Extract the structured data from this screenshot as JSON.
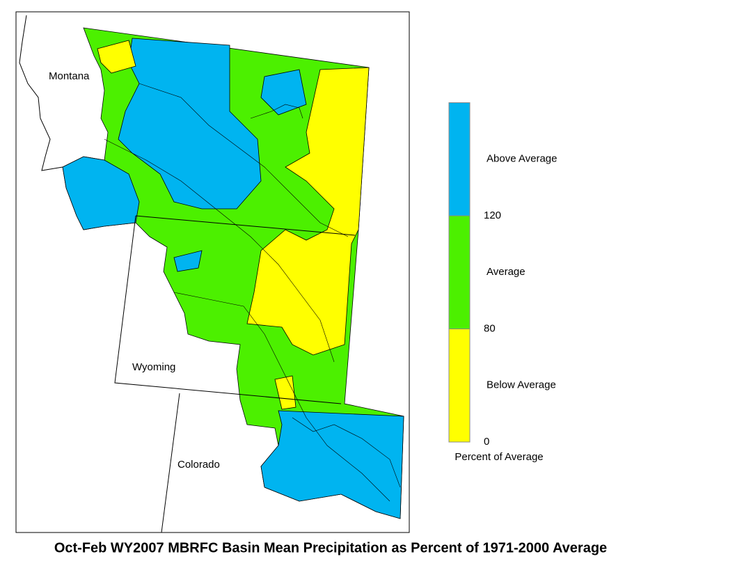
{
  "map": {
    "title": "Oct-Feb WY2007 MBRFC Basin Mean Precipitation as Percent of 1971-2000 Average",
    "state_labels": [
      "Montana",
      "Wyoming",
      "Colorado"
    ],
    "legend": {
      "title": "Percent of Average",
      "ticks": [
        0,
        80,
        120
      ],
      "classes": [
        {
          "name": "Below Average",
          "color": "#ffff00"
        },
        {
          "name": "Average",
          "color": "#4cf000"
        },
        {
          "name": "Above Average",
          "color": "#00b4f0"
        }
      ]
    }
  }
}
